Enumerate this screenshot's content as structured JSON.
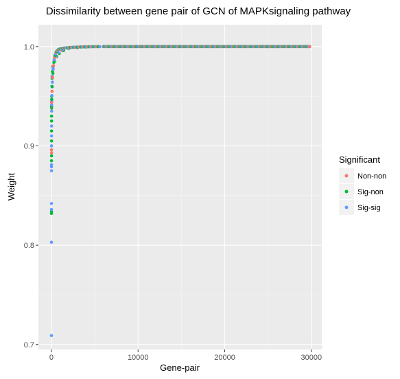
{
  "chart_data": {
    "type": "scatter",
    "title": "Dissimilarity between gene pair of GCN of MAPKsignaling pathway",
    "xlabel": "Gene-pair",
    "ylabel": "Weight",
    "xlim": [
      -1500,
      31200
    ],
    "ylim": [
      0.695,
      1.022
    ],
    "x_ticks": [
      0,
      10000,
      20000,
      30000
    ],
    "x_tick_labels": [
      "0",
      "10000",
      "20000",
      "30000"
    ],
    "y_ticks": [
      0.7,
      0.8,
      0.9,
      1.0
    ],
    "y_tick_labels": [
      "0.7",
      "0.8",
      "0.9",
      "1.0"
    ],
    "grid": true,
    "legend": {
      "title": "Significant",
      "position": "right",
      "entries": [
        {
          "label": "Non-non",
          "color": "#F8766D"
        },
        {
          "label": "Sig-non",
          "color": "#00BA38"
        },
        {
          "label": "Sig-sig",
          "color": "#619CFF"
        }
      ]
    },
    "x_max": 29800,
    "series": [
      {
        "name": "Non-non",
        "color": "#F8766D",
        "points": [
          [
            10,
            0.896
          ],
          [
            15,
            0.893
          ],
          [
            30,
            0.945
          ],
          [
            60,
            0.97
          ],
          [
            150,
            0.98
          ],
          [
            400,
            0.99
          ],
          [
            1200,
            0.996
          ],
          [
            3000,
            0.999
          ],
          [
            9000,
            1.0
          ],
          [
            17000,
            1.0
          ],
          [
            25000,
            1.0
          ]
        ]
      },
      {
        "name": "Sig-non",
        "color": "#00BA38",
        "points": [
          [
            5,
            0.834
          ],
          [
            6,
            0.832
          ],
          [
            8,
            0.885
          ],
          [
            10,
            0.89
          ],
          [
            12,
            0.905
          ],
          [
            14,
            0.915
          ],
          [
            16,
            0.925
          ],
          [
            18,
            0.93
          ],
          [
            20,
            0.938
          ],
          [
            25,
            0.94
          ],
          [
            35,
            0.95
          ],
          [
            50,
            0.96
          ],
          [
            80,
            0.968
          ],
          [
            120,
            0.975
          ],
          [
            200,
            0.98
          ],
          [
            350,
            0.985
          ],
          [
            600,
            0.99
          ],
          [
            900,
            0.993
          ],
          [
            1400,
            0.996
          ],
          [
            2000,
            0.998
          ],
          [
            3000,
            0.999
          ],
          [
            4000,
            0.9995
          ],
          [
            5000,
            1.0
          ],
          [
            10000,
            1.0
          ],
          [
            15000,
            1.0
          ],
          [
            20000,
            1.0
          ],
          [
            25000,
            1.0
          ],
          [
            29800,
            1.0
          ]
        ]
      },
      {
        "name": "Sig-sig",
        "color": "#619CFF",
        "points": [
          [
            3,
            0.709
          ],
          [
            5,
            0.803
          ],
          [
            6,
            0.836
          ],
          [
            7,
            0.842
          ],
          [
            8,
            0.875
          ],
          [
            9,
            0.879
          ],
          [
            10,
            0.881
          ],
          [
            12,
            0.9
          ],
          [
            15,
            0.91
          ],
          [
            20,
            0.92
          ],
          [
            28,
            0.935
          ],
          [
            40,
            0.945
          ],
          [
            70,
            0.96
          ],
          [
            110,
            0.97
          ],
          [
            180,
            0.978
          ],
          [
            300,
            0.985
          ],
          [
            500,
            0.99
          ],
          [
            800,
            0.994
          ],
          [
            1300,
            0.997
          ],
          [
            2000,
            0.998
          ],
          [
            3500,
            0.9995
          ],
          [
            6000,
            1.0
          ],
          [
            12000,
            1.0
          ],
          [
            19000,
            1.0
          ],
          [
            26000,
            1.0
          ],
          [
            29500,
            1.0
          ]
        ]
      }
    ]
  }
}
